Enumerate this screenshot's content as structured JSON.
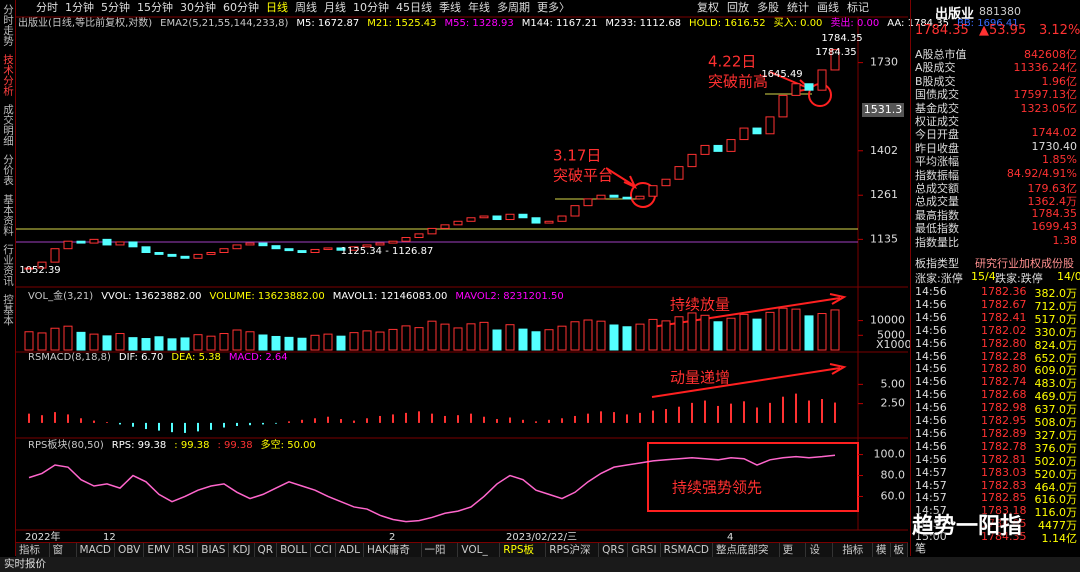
{
  "left_tabs": [
    "分时走势",
    "技术分析",
    "成交明细",
    "分价表",
    "基本资料",
    "行业资讯",
    "控基本"
  ],
  "toolbar": {
    "periods": [
      "分时",
      "1分钟",
      "5分钟",
      "15分钟",
      "30分钟",
      "60分钟",
      "日线",
      "周线",
      "月线",
      "10分钟",
      "45日线",
      "季线",
      "年线",
      "多周期",
      "更多〉"
    ],
    "tools": [
      "复权",
      "回放",
      "多股",
      "统计",
      "画线",
      "标记"
    ]
  },
  "chart": {
    "info": [
      {
        "text": "出版业(日线,等比前复权,对数)",
        "color": "#c8c8c8"
      },
      {
        "text": "EMA2(5,21,55,144,233,8)",
        "color": "#c8c8c8"
      },
      {
        "text": "M5: 1672.87",
        "color": "#ffffff"
      },
      {
        "text": "M21: 1525.43",
        "color": "#ffff00"
      },
      {
        "text": "M55: 1328.93",
        "color": "#ff00ff"
      },
      {
        "text": "M144: 1167.21",
        "color": "#ffffff"
      },
      {
        "text": "M233: 1112.68",
        "color": "#ffffff"
      },
      {
        "text": "HOLD: 1616.52",
        "color": "#ffff00"
      },
      {
        "text": "买入: 0.00",
        "color": "#ffff00"
      },
      {
        "text": "卖出: 0.00",
        "color": "#ff00ff"
      },
      {
        "text": "AA: 1784.35",
        "color": "#ffffff"
      },
      {
        "text": "BB: 1696.41",
        "color": "#3a6cff"
      }
    ],
    "price_range": [
      1050,
      1870
    ],
    "log_scale": true,
    "price_ticks": [
      1135,
      1261,
      1402,
      1730
    ],
    "up_color": "#ff3232",
    "down_color": "#54ffff",
    "closes": [
      1060,
      1075,
      1110,
      1130,
      1125,
      1135,
      1120,
      1128,
      1115,
      1100,
      1095,
      1090,
      1085,
      1095,
      1100,
      1110,
      1120,
      1125,
      1118,
      1110,
      1105,
      1100,
      1108,
      1112,
      1106,
      1115,
      1120,
      1125,
      1130,
      1140,
      1150,
      1165,
      1175,
      1185,
      1195,
      1200,
      1190,
      1205,
      1195,
      1180,
      1185,
      1200,
      1230,
      1250,
      1261,
      1255,
      1250,
      1258,
      1290,
      1310,
      1350,
      1390,
      1420,
      1400,
      1440,
      1480,
      1460,
      1520,
      1600,
      1645,
      1620,
      1700,
      1784.35
    ],
    "dates": [
      "2022年",
      null,
      null,
      null,
      null,
      null,
      "12",
      null,
      null,
      null,
      null,
      null,
      null,
      null,
      null,
      null,
      null,
      null,
      null,
      null,
      null,
      null,
      null,
      null,
      null,
      null,
      null,
      null,
      "2",
      null,
      null,
      null,
      null,
      null,
      null,
      null,
      null,
      "2023/02/22/三",
      null,
      null,
      null,
      null,
      null,
      null,
      null,
      null,
      null,
      null,
      null,
      null,
      null,
      null,
      null,
      null,
      "4",
      null,
      null,
      null,
      null,
      null,
      null,
      null,
      null
    ],
    "price_labels": {
      "high": "1784.35",
      "prev_high": "1645.49",
      "range": "1125.34 - 1126.87",
      "low": "1052.39",
      "current": "1531.3",
      "top": "1784.35"
    },
    "annotations": {
      "a1_date": "4.22日",
      "a1_text": "突破前高",
      "a2_date": "3.17日",
      "a2_text": "突破平台",
      "vol": "持续放量",
      "macd": "动量递增",
      "rps": "持续强势领先"
    },
    "volume": {
      "legend": [
        {
          "text": "VOL_金(3,21)",
          "color": "#c8c8c8"
        },
        {
          "text": "VVOL: 13623882.00",
          "color": "#ffffff"
        },
        {
          "text": "VOLUME: 13623882.00",
          "color": "#ffff00"
        },
        {
          "text": "MAVOL1: 12146083.00",
          "color": "#ffffff"
        },
        {
          "text": "MAVOL2: 8231201.50",
          "color": "#ff00ff"
        }
      ],
      "range": [
        0,
        17000
      ],
      "ticks": [
        10000,
        5000
      ],
      "unit": "X1000",
      "values": [
        6200,
        5800,
        7400,
        8100,
        6000,
        5400,
        4800,
        5600,
        4200,
        3900,
        4500,
        3800,
        4100,
        5200,
        4700,
        5600,
        6800,
        6200,
        5100,
        4600,
        4300,
        4000,
        5000,
        5400,
        4700,
        5900,
        6500,
        6100,
        7000,
        8200,
        7600,
        9800,
        8800,
        7500,
        8900,
        9400,
        6800,
        8600,
        7100,
        6200,
        6900,
        8100,
        9600,
        10200,
        9800,
        8500,
        7900,
        8800,
        10400,
        9900,
        11300,
        12600,
        11800,
        9600,
        10800,
        12100,
        10500,
        12800,
        14200,
        13900,
        11600,
        12400,
        13624
      ]
    },
    "rsmacd": {
      "legend": [
        {
          "text": "RSMACD(8,18,8)",
          "color": "#c8c8c8"
        },
        {
          "text": "DIF: 6.70",
          "color": "#ffffff"
        },
        {
          "text": "DEA: 5.38",
          "color": "#ffff00"
        },
        {
          "text": "MACD: 2.64",
          "color": "#ff00ff"
        }
      ],
      "range": [
        -1.7,
        7.9
      ],
      "ticks": [
        {
          "value": 5,
          "label": "5.00"
        },
        {
          "value": 2.5,
          "label": "2.50"
        }
      ],
      "values": [
        1.2,
        1.0,
        1.4,
        1.1,
        0.6,
        0.3,
        0.1,
        -0.2,
        -0.5,
        -0.8,
        -1.0,
        -1.2,
        -1.3,
        -1.1,
        -0.9,
        -0.6,
        -0.4,
        -0.3,
        -0.2,
        -0.1,
        0.2,
        0.4,
        0.6,
        0.8,
        0.5,
        0.3,
        0.6,
        0.9,
        1.1,
        1.3,
        1.5,
        1.2,
        0.9,
        1.0,
        1.2,
        0.8,
        0.5,
        0.7,
        0.4,
        0.2,
        0.4,
        0.6,
        0.9,
        1.2,
        1.5,
        1.4,
        1.1,
        1.3,
        1.6,
        1.8,
        2.1,
        2.6,
        2.9,
        2.2,
        2.5,
        2.8,
        2.0,
        2.6,
        3.4,
        3.8,
        2.9,
        3.1,
        2.64
      ]
    },
    "rps": {
      "legend": [
        {
          "text": "RPS板块(80,50)",
          "color": "#c8c8c8"
        },
        {
          "text": "RPS: 99.38",
          "color": "#ffffff"
        },
        {
          "text": ": 99.38",
          "color": "#ffff00"
        },
        {
          "text": ": 99.38",
          "color": "#ff3232"
        },
        {
          "text": "多空: 50.00",
          "color": "#ffff00"
        }
      ],
      "range": [
        28,
        112
      ],
      "ticks": [
        {
          "value": 100,
          "label": "100.0"
        },
        {
          "value": 80,
          "label": "80.0"
        },
        {
          "value": 60,
          "label": "60.0"
        }
      ],
      "color": "#ff66cc",
      "values": [
        78,
        82,
        90,
        88,
        76,
        70,
        72,
        68,
        80,
        74,
        62,
        55,
        60,
        66,
        70,
        72,
        64,
        58,
        62,
        68,
        74,
        70,
        66,
        60,
        55,
        50,
        48,
        42,
        38,
        36,
        37,
        40,
        44,
        46,
        50,
        60,
        72,
        80,
        76,
        66,
        62,
        58,
        64,
        74,
        82,
        88,
        90,
        92,
        94,
        95,
        96,
        97,
        96,
        95,
        97,
        96,
        90,
        95,
        97,
        98,
        97,
        98,
        99.38
      ]
    }
  },
  "quote": {
    "name": "出版业",
    "code": "881380",
    "price": "1784.35",
    "change": "▲53.95",
    "pct": "3.12%"
  },
  "stats": [
    {
      "label": "A股总市值",
      "value": "842608亿"
    },
    {
      "label": "A股成交",
      "value": "11336.24亿"
    },
    {
      "label": "B股成交",
      "value": "1.96亿"
    },
    {
      "label": "国债成交",
      "value": "17597.13亿"
    },
    {
      "label": "基金成交",
      "value": "1323.05亿"
    },
    {
      "label": "权证成交",
      "value": ""
    },
    {
      "label": "今日开盘",
      "value": "1744.02"
    },
    {
      "label": "昨日收盘",
      "value": "1730.40"
    },
    {
      "label": "平均涨幅",
      "value": "1.85%"
    },
    {
      "label": "指数振幅",
      "value": "84.92/4.91%"
    },
    {
      "label": "总成交额",
      "value": "179.63亿"
    },
    {
      "label": "总成交量",
      "value": "1362.4万"
    },
    {
      "label": "最高指数",
      "value": "1784.35"
    },
    {
      "label": "最低指数",
      "value": "1699.43"
    },
    {
      "label": "指数量比",
      "value": "1.38"
    }
  ],
  "board": [
    "板指类型",
    "研究行业",
    "加权",
    "成份股"
  ],
  "breadth": [
    "涨家:涨停",
    "15/4",
    "跌家:跌停",
    "14/0"
  ],
  "trades": [
    [
      "14:56",
      "1782.36",
      "382.0万"
    ],
    [
      "14:56",
      "1782.67",
      "712.0万"
    ],
    [
      "14:56",
      "1782.41",
      "517.0万"
    ],
    [
      "14:56",
      "1782.02",
      "330.0万"
    ],
    [
      "14:56",
      "1782.80",
      "824.0万"
    ],
    [
      "14:56",
      "1782.28",
      "652.0万"
    ],
    [
      "14:56",
      "1782.80",
      "609.0万"
    ],
    [
      "14:56",
      "1782.74",
      "483.0万"
    ],
    [
      "14:56",
      "1782.68",
      "469.0万"
    ],
    [
      "14:56",
      "1782.98",
      "637.0万"
    ],
    [
      "14:56",
      "1782.95",
      "508.0万"
    ],
    [
      "14:56",
      "1782.89",
      "327.0万"
    ],
    [
      "14:56",
      "1782.78",
      "376.0万"
    ],
    [
      "14:56",
      "1782.81",
      "502.0万"
    ],
    [
      "14:57",
      "1783.03",
      "520.0万"
    ],
    [
      "14:57",
      "1782.83",
      "464.0万"
    ],
    [
      "14:57",
      "1782.85",
      "616.0万"
    ],
    [
      "14:57",
      "1783.18",
      "116.0万"
    ],
    [
      "14:57",
      "1784.05",
      "4477万"
    ],
    [
      "15:00",
      "1784.35",
      "1.14亿"
    ]
  ],
  "bottom_tabs": [
    "指标A",
    "窗口",
    "MACD",
    "OBV",
    "EMV",
    "RSI",
    "BIAS",
    "KDJ",
    "QR",
    "BOLL",
    "CCI",
    "ADL",
    "HAK庸奇安",
    "一阳指",
    "VOL_金",
    "RPS板块",
    "RPS沪深A",
    "QRS",
    "GRSI",
    "RSMACD",
    "整点底部突破",
    "更多",
    "设置"
  ],
  "bottom_right": [
    "指标B",
    "模",
    "板"
  ],
  "status": "实时报价",
  "right_tab": "笔",
  "watermark": "趋势一阳指"
}
